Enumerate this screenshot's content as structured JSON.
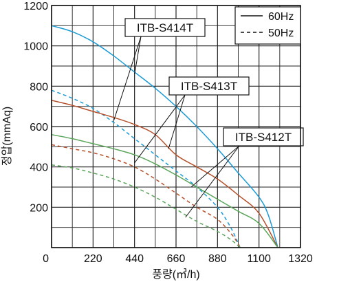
{
  "chart_data": {
    "type": "line",
    "xlabel": "풍량(㎥/h)",
    "ylabel": "정압(mmAq)",
    "xlim": [
      0,
      1320
    ],
    "ylim": [
      0,
      1200
    ],
    "x_ticks": [
      "0",
      "220",
      "440",
      "660",
      "880",
      "1100",
      "1320"
    ],
    "y_ticks": [
      "0",
      "200",
      "400",
      "600",
      "800",
      "1000",
      "1200"
    ],
    "grid": true,
    "legend": {
      "placement": "top-right",
      "entries": [
        {
          "label": "60Hz",
          "style": "solid"
        },
        {
          "label": "50Hz",
          "style": "dashed"
        }
      ]
    },
    "models": [
      {
        "name": "ITB-S414T",
        "color": "#1a9ad6"
      },
      {
        "name": "ITB-S413T",
        "color": "#b5502a"
      },
      {
        "name": "ITB-S412T",
        "color": "#5aa55a"
      }
    ],
    "series": [
      {
        "model": "ITB-S414T",
        "freq": "60Hz",
        "style": "solid",
        "color": "#1a9ad6",
        "x": [
          0,
          110,
          220,
          330,
          440,
          550,
          660,
          770,
          880,
          990,
          1100,
          1150,
          1200
        ],
        "y": [
          1100,
          1070,
          1020,
          950,
          870,
          790,
          700,
          600,
          490,
          370,
          250,
          160,
          0
        ]
      },
      {
        "model": "ITB-S414T",
        "freq": "50Hz",
        "style": "dashed",
        "color": "#1a9ad6",
        "x": [
          0,
          110,
          220,
          330,
          440,
          550,
          660,
          770,
          880,
          950,
          1000
        ],
        "y": [
          780,
          740,
          690,
          620,
          540,
          460,
          380,
          300,
          200,
          100,
          0
        ]
      },
      {
        "model": "ITB-S413T",
        "freq": "60Hz",
        "style": "solid",
        "color": "#b5502a",
        "x": [
          0,
          110,
          220,
          330,
          440,
          550,
          660,
          770,
          880,
          990,
          1100,
          1200
        ],
        "y": [
          730,
          705,
          675,
          645,
          610,
          560,
          460,
          400,
          340,
          260,
          170,
          0
        ]
      },
      {
        "model": "ITB-S413T",
        "freq": "50Hz",
        "style": "dashed",
        "color": "#b5502a",
        "x": [
          0,
          110,
          220,
          330,
          440,
          550,
          660,
          770,
          880,
          960,
          1000
        ],
        "y": [
          510,
          490,
          470,
          440,
          400,
          340,
          270,
          200,
          140,
          60,
          0
        ]
      },
      {
        "model": "ITB-S412T",
        "freq": "60Hz",
        "style": "solid",
        "color": "#5aa55a",
        "x": [
          0,
          110,
          220,
          330,
          440,
          550,
          660,
          770,
          880,
          990,
          1100,
          1200
        ],
        "y": [
          560,
          540,
          515,
          490,
          460,
          415,
          360,
          300,
          240,
          180,
          120,
          0
        ]
      },
      {
        "model": "ITB-S412T",
        "freq": "50Hz",
        "style": "dashed",
        "color": "#5aa55a",
        "x": [
          0,
          110,
          220,
          330,
          440,
          550,
          660,
          770,
          880,
          950,
          1000
        ],
        "y": [
          410,
          395,
          370,
          340,
          300,
          250,
          190,
          130,
          80,
          40,
          0
        ]
      }
    ],
    "callouts": [
      {
        "label": "ITB-S414T",
        "placement": "top",
        "targets": [
          [
            440,
            860
          ],
          [
            330,
            630
          ]
        ]
      },
      {
        "label": "ITB-S413T",
        "placement": "upper-right",
        "targets": [
          [
            620,
            490
          ],
          [
            440,
            420
          ]
        ]
      },
      {
        "label": "ITB-S412T",
        "placement": "middle-right",
        "targets": [
          [
            740,
            300
          ],
          [
            710,
            150
          ]
        ]
      }
    ]
  }
}
